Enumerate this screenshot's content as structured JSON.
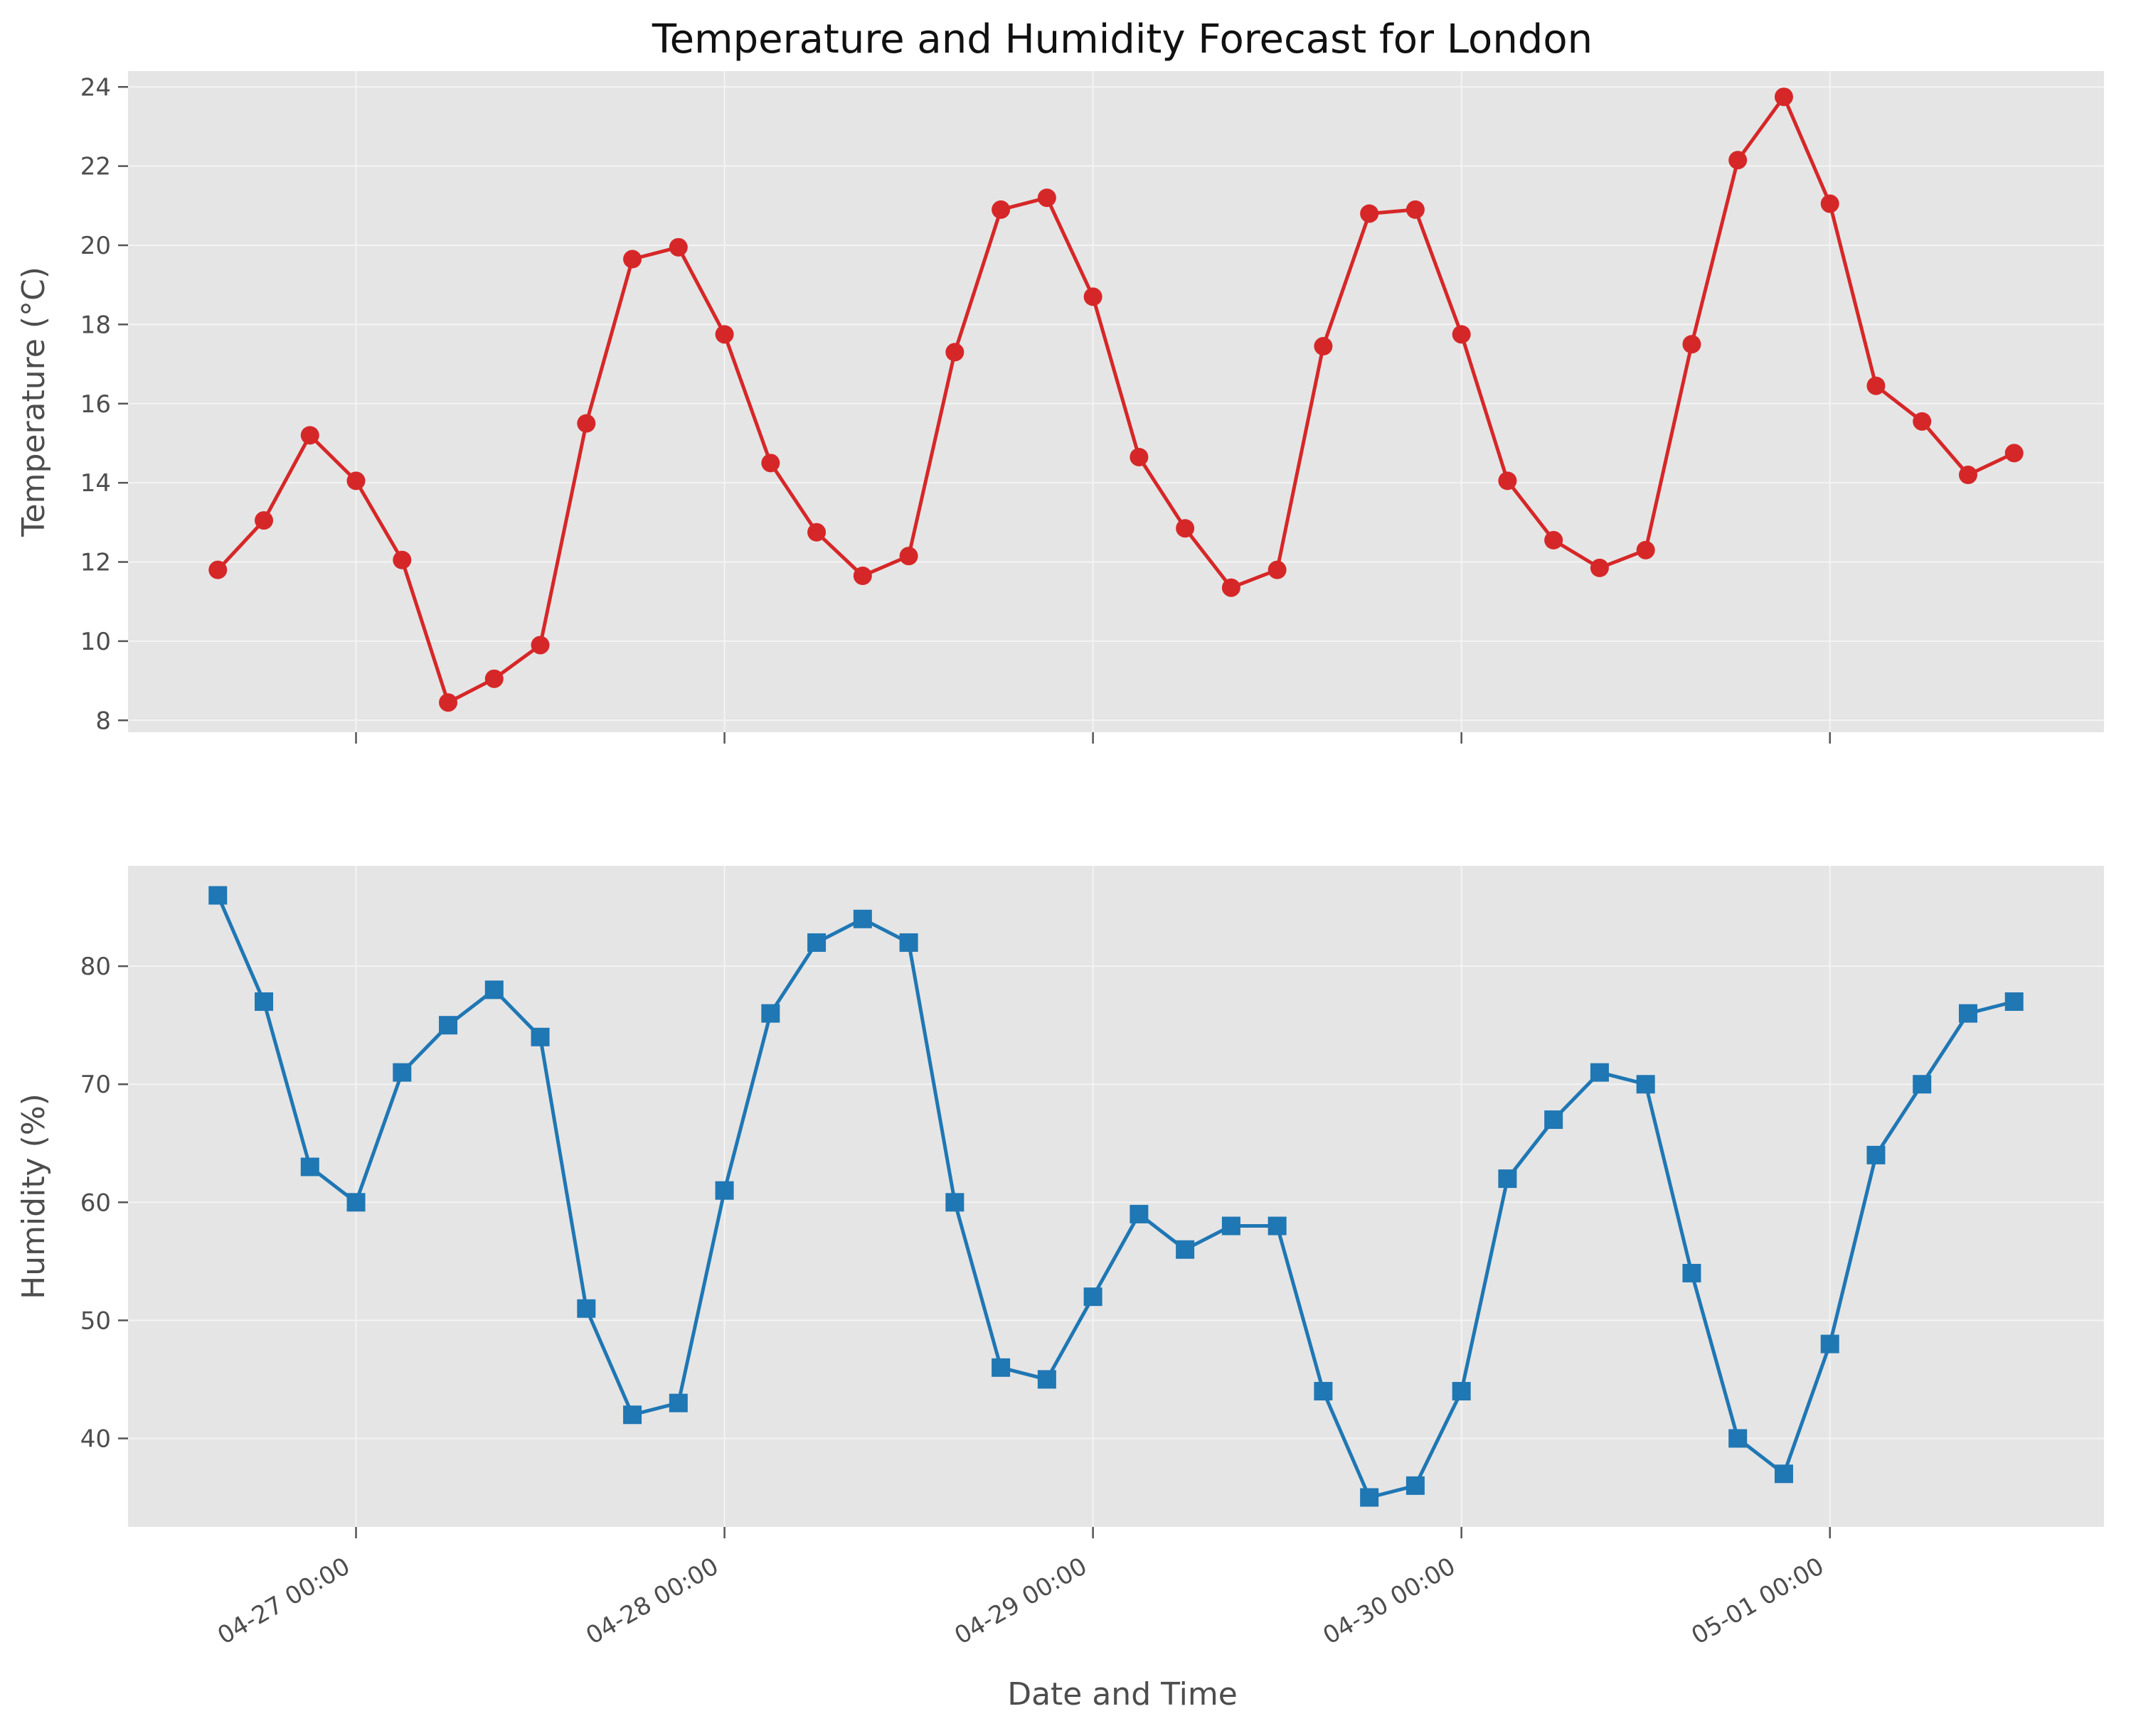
{
  "chart_data": {
    "type": "line",
    "title": "Temperature and Humidity Forecast for London",
    "xlabel": "Date and Time",
    "x_tick_labels": [
      "04-27 00:00",
      "04-28 00:00",
      "04-29 00:00",
      "04-30 00:00",
      "05-01 00:00"
    ],
    "x_tick_dates": [
      "2025-04-27 00:00",
      "2025-04-28 00:00",
      "2025-04-29 00:00",
      "2025-04-30 00:00",
      "2025-05-01 00:00"
    ],
    "x": [
      "2025-04-26 15:00",
      "2025-04-26 18:00",
      "2025-04-26 21:00",
      "2025-04-27 00:00",
      "2025-04-27 03:00",
      "2025-04-27 06:00",
      "2025-04-27 09:00",
      "2025-04-27 12:00",
      "2025-04-27 15:00",
      "2025-04-27 18:00",
      "2025-04-27 21:00",
      "2025-04-28 00:00",
      "2025-04-28 03:00",
      "2025-04-28 06:00",
      "2025-04-28 09:00",
      "2025-04-28 12:00",
      "2025-04-28 15:00",
      "2025-04-28 18:00",
      "2025-04-28 21:00",
      "2025-04-29 00:00",
      "2025-04-29 03:00",
      "2025-04-29 06:00",
      "2025-04-29 09:00",
      "2025-04-29 12:00",
      "2025-04-29 15:00",
      "2025-04-29 18:00",
      "2025-04-29 21:00",
      "2025-04-30 00:00",
      "2025-04-30 03:00",
      "2025-04-30 06:00",
      "2025-04-30 09:00",
      "2025-04-30 12:00",
      "2025-04-30 15:00",
      "2025-04-30 18:00",
      "2025-04-30 21:00",
      "2025-05-01 00:00",
      "2025-05-01 03:00",
      "2025-05-01 06:00",
      "2025-05-01 09:00",
      "2025-05-01 12:00"
    ],
    "grid": true,
    "panels": [
      {
        "ylabel": "Temperature (°C)",
        "ylim": [
          7.7,
          24.4
        ],
        "yticks": [
          8,
          10,
          12,
          14,
          16,
          18,
          20,
          22,
          24
        ],
        "color": "#d62728",
        "marker": "circle",
        "values": [
          11.8,
          13.05,
          15.2,
          14.05,
          12.05,
          8.45,
          9.05,
          9.9,
          15.5,
          19.65,
          19.95,
          17.75,
          14.5,
          12.75,
          11.65,
          12.15,
          17.3,
          20.9,
          21.2,
          18.7,
          14.65,
          12.85,
          11.35,
          11.8,
          17.45,
          20.8,
          20.9,
          17.75,
          14.05,
          12.55,
          11.85,
          12.3,
          17.5,
          22.15,
          23.75,
          21.05,
          16.45,
          15.55,
          14.2,
          14.75
        ]
      },
      {
        "ylabel": "Humidity (%)",
        "ylim": [
          32.5,
          88.5
        ],
        "yticks": [
          40,
          50,
          60,
          70,
          80
        ],
        "color": "#1f77b4",
        "marker": "square",
        "values": [
          86,
          77,
          63,
          60,
          71,
          75,
          78,
          74,
          51,
          42,
          43,
          61,
          76,
          82,
          84,
          82,
          60,
          46,
          45,
          52,
          59,
          56,
          58,
          58,
          44,
          35,
          36,
          44,
          62,
          67,
          71,
          70,
          54,
          40,
          37,
          48,
          64,
          70,
          76,
          77
        ]
      }
    ]
  }
}
